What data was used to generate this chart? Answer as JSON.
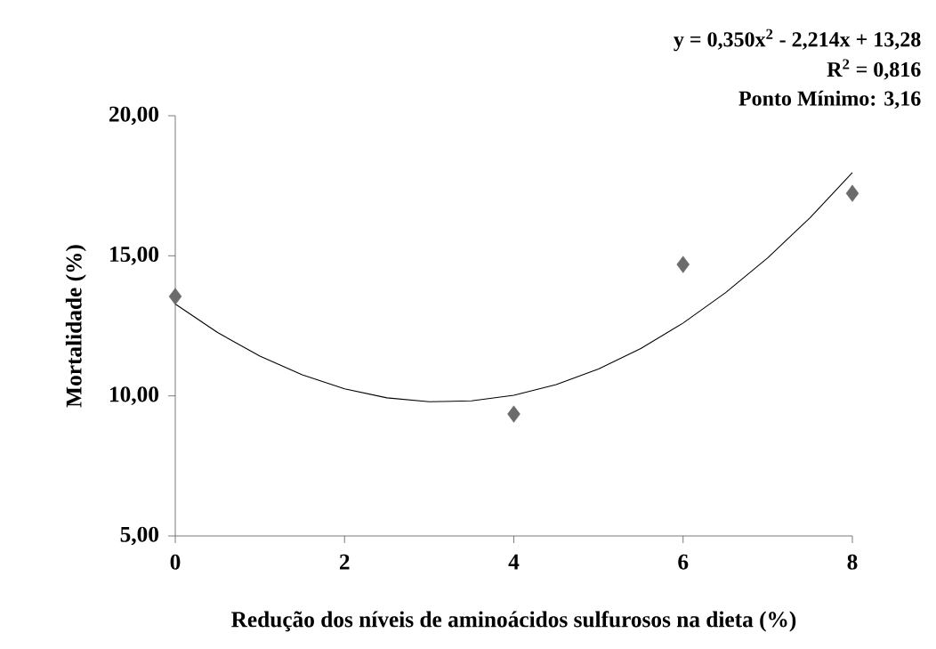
{
  "chart_data": {
    "type": "scatter",
    "xlabel": "Redução dos níveis de aminoácidos sulfurosos na dieta (%)",
    "ylabel": "Mortalidade (%)",
    "annotations": [
      "y = 0,350x$^{2}$ - 2,214x + 13,28",
      "R$^{2}$ = 0,816",
      "Ponto Mínimo: 3,16"
    ],
    "xlim": [
      0,
      8
    ],
    "ylim": [
      5,
      20
    ],
    "xticks": [
      0,
      2,
      4,
      6,
      8
    ],
    "yticks": [
      {
        "value": 5,
        "label": "5,00"
      },
      {
        "value": 10,
        "label": "10,00"
      },
      {
        "value": 15,
        "label": "15,00"
      },
      {
        "value": 20,
        "label": "20,00"
      }
    ],
    "series": [
      {
        "type": "line",
        "marker": "none",
        "color": "#000000",
        "x": [
          0,
          0.5,
          1,
          1.5,
          2,
          2.5,
          3,
          3.5,
          4,
          4.5,
          5,
          5.5,
          6,
          6.5,
          7,
          7.5,
          8
        ],
        "values": [
          13.28,
          12.26,
          11.42,
          10.75,
          10.25,
          9.93,
          9.79,
          9.82,
          10.02,
          10.4,
          10.96,
          11.69,
          12.6,
          13.68,
          14.93,
          16.36,
          17.97
        ]
      },
      {
        "marker": "diamond",
        "color": "#6b6b6b",
        "x": [
          0,
          4,
          6,
          8
        ],
        "values": [
          13.55,
          9.35,
          14.69,
          17.23
        ]
      }
    ]
  }
}
